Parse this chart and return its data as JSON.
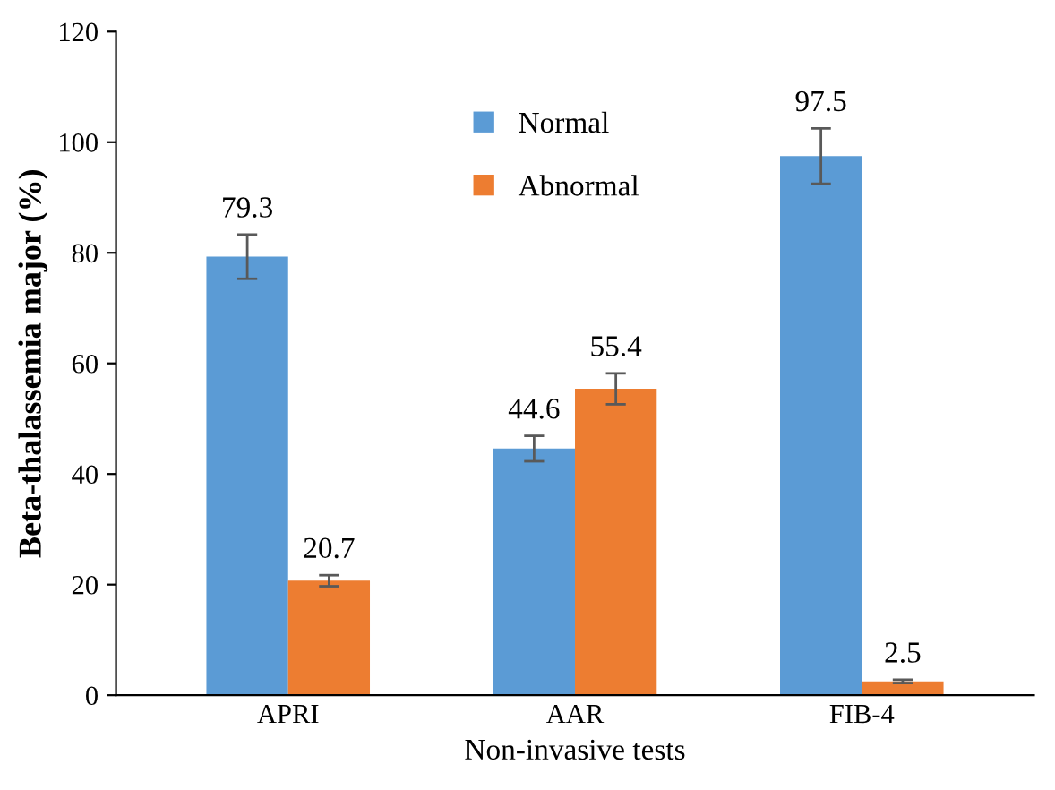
{
  "chart_data": {
    "type": "bar",
    "xlabel": "Non-invasive tests",
    "ylabel": "Beta-thalassemia major (%)",
    "categories": [
      "APRI",
      "AAR",
      "FIB-4"
    ],
    "series": [
      {
        "name": "Normal",
        "color": "#5b9bd5",
        "values": [
          79.3,
          44.6,
          97.5
        ],
        "errors": [
          4,
          2.3,
          5
        ]
      },
      {
        "name": "Abnormal",
        "color": "#ed7d31",
        "values": [
          20.7,
          55.4,
          2.5
        ],
        "errors": [
          1,
          2.8,
          0.3
        ]
      }
    ],
    "ylim": [
      0,
      120
    ],
    "yticks": [
      0,
      20,
      40,
      60,
      80,
      100,
      120
    ],
    "grid": false,
    "legend": "top",
    "data_labels": true
  }
}
